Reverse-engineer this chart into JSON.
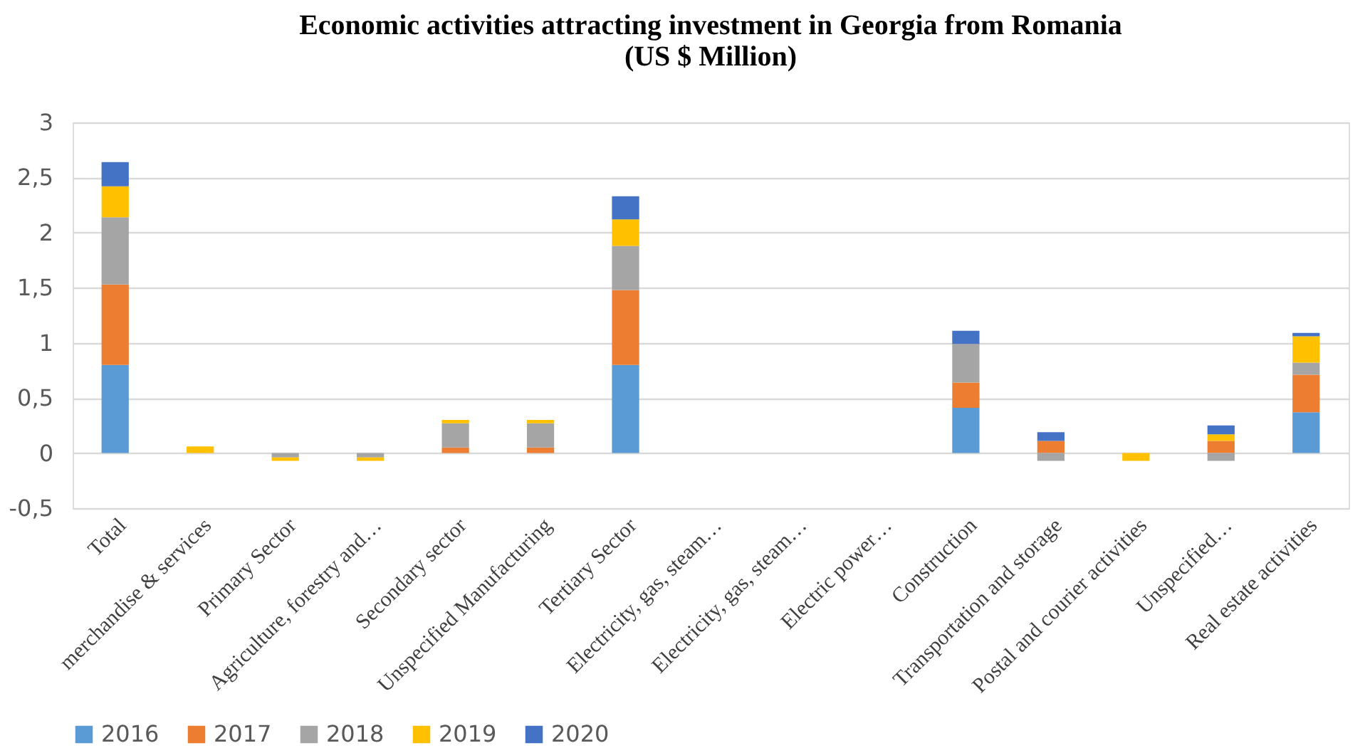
{
  "chart_data": {
    "type": "bar",
    "title": "Economic activities attracting investment in Georgia from Romania\n(US $ Million)",
    "stacked": true,
    "categories": [
      "Total",
      "merchandise & services",
      "Primary Sector",
      "Agriculture, forestry and…",
      "Secondary sector",
      "Unspecified Manufacturing",
      "Tertiary Sector",
      "Electricity, gas, steam…",
      "Electricity, gas, steam…",
      "Electric power…",
      "Construction",
      "Transportation and storage",
      "Postal and courier activities",
      "Unspecified…",
      "Real estate activities"
    ],
    "series": [
      {
        "name": "2016",
        "color": "#5b9bd5",
        "values": [
          0.8,
          null,
          null,
          null,
          null,
          null,
          0.8,
          null,
          null,
          null,
          0.41,
          null,
          null,
          null,
          0.37
        ]
      },
      {
        "name": "2017",
        "color": "#ed7d31",
        "values": [
          0.73,
          null,
          null,
          null,
          0.05,
          0.05,
          0.68,
          null,
          null,
          null,
          0.23,
          0.11,
          null,
          0.11,
          0.34
        ]
      },
      {
        "name": "2018",
        "color": "#a5a5a5",
        "values": [
          0.61,
          null,
          -0.04,
          -0.04,
          0.22,
          0.22,
          0.4,
          null,
          null,
          null,
          0.35,
          -0.07,
          null,
          -0.07,
          0.11
        ]
      },
      {
        "name": "2019",
        "color": "#ffc000",
        "values": [
          0.28,
          0.06,
          -0.03,
          -0.03,
          0.03,
          0.03,
          0.24,
          null,
          null,
          null,
          null,
          null,
          -0.07,
          0.06,
          0.24
        ]
      },
      {
        "name": "2020",
        "color": "#4472c4",
        "values": [
          0.22,
          null,
          null,
          null,
          null,
          null,
          0.21,
          null,
          null,
          null,
          0.12,
          0.08,
          null,
          0.08,
          0.03
        ]
      }
    ],
    "ylim": [
      -0.5,
      3
    ],
    "yticks": [
      {
        "value": -0.5,
        "label": "-0,5"
      },
      0,
      {
        "value": 0.5,
        "label": "0,5"
      },
      1,
      {
        "value": 1.5,
        "label": "1,5"
      },
      2,
      {
        "value": 2.5,
        "label": "2,5"
      },
      3
    ],
    "grid": "y",
    "legend": "bottom"
  }
}
